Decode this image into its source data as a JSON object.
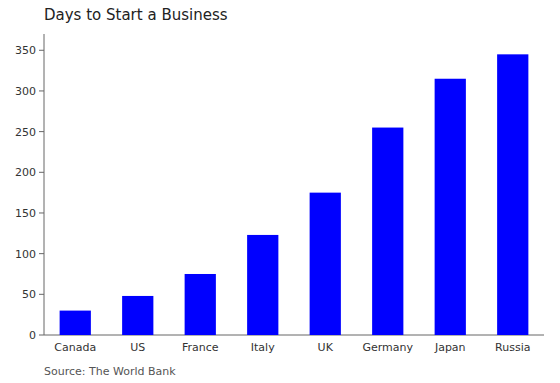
{
  "chart_data": {
    "type": "bar",
    "title": "Days to Start a Business",
    "subtitle": "Source: The World Bank",
    "categories": [
      "Canada",
      "US",
      "France",
      "Italy",
      "UK",
      "Germany",
      "Japan",
      "Russia"
    ],
    "values": [
      30,
      48,
      75,
      123,
      175,
      255,
      315,
      345
    ],
    "color": "#0000ff",
    "ylim": [
      0,
      370
    ],
    "yticks": [
      0,
      50,
      100,
      150,
      200,
      250,
      300,
      350
    ],
    "grid": false
  }
}
